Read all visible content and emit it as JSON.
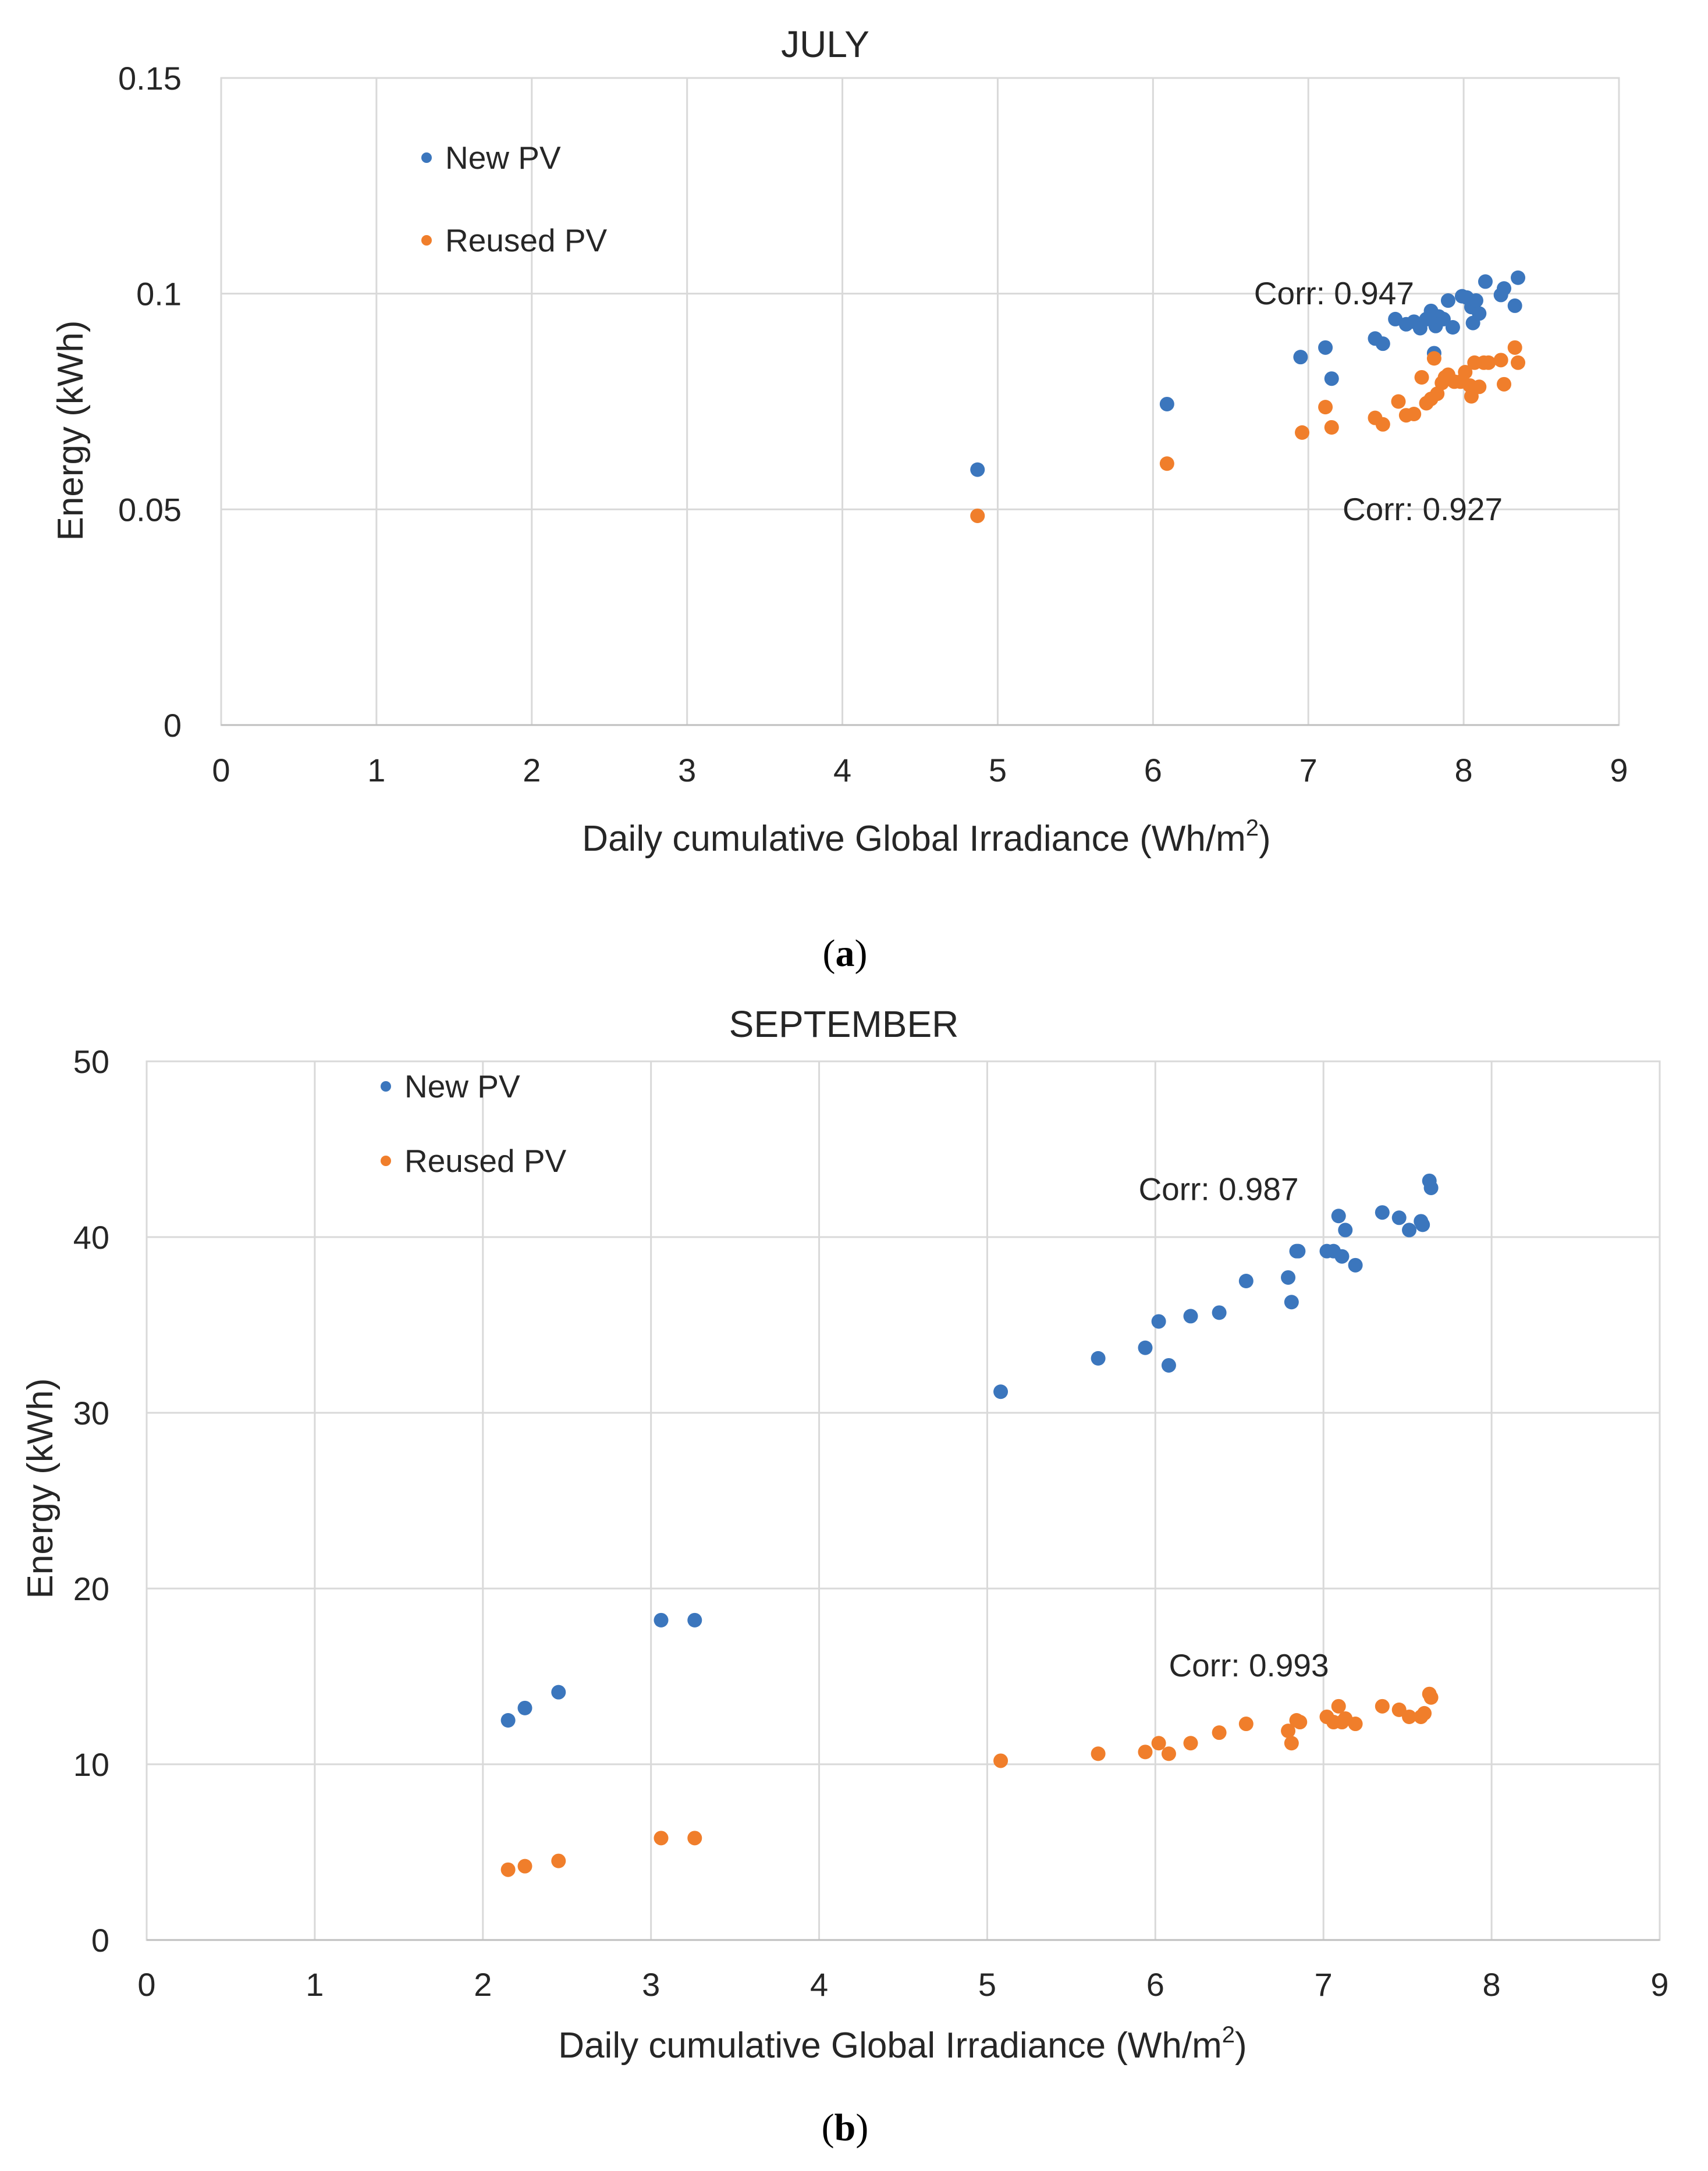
{
  "colors": {
    "new_pv": "#3b76bd",
    "reused_pv": "#f07e2b",
    "grid": "#d9d9d9",
    "text": "#262626"
  },
  "chart_data": [
    {
      "id": "a",
      "type": "scatter",
      "title": "JULY",
      "xlabel": "Daily cumulative Global Irradiance (Wh/m",
      "xlabel_sup": "2",
      "xlabel_end": ")",
      "ylabel": "Energy (kWh)",
      "xlim": [
        0,
        9
      ],
      "ylim": [
        0,
        0.15
      ],
      "xticks": [
        0,
        1,
        2,
        3,
        4,
        5,
        6,
        7,
        8,
        9
      ],
      "yticks": [
        0,
        0.05,
        0.1,
        0.15
      ],
      "ytick_labels": [
        "0",
        "0.05",
        "0.1",
        "0.15"
      ],
      "legend": [
        "New PV",
        "Reused PV"
      ],
      "legend_position": "top-left",
      "caption_letter": "a",
      "annotations": [
        {
          "text": "Corr: 0.947",
          "x": 6.65,
          "y": 0.0975
        },
        {
          "text": "Corr: 0.927",
          "x": 7.22,
          "y": 0.0475
        }
      ],
      "series": [
        {
          "name": "New PV",
          "color": "#3b76bd",
          "points": [
            [
              4.87,
              0.0592
            ],
            [
              6.09,
              0.0744
            ],
            [
              6.95,
              0.0853
            ],
            [
              7.11,
              0.0875
            ],
            [
              7.15,
              0.0803
            ],
            [
              7.43,
              0.0896
            ],
            [
              7.48,
              0.0884
            ],
            [
              7.56,
              0.0941
            ],
            [
              7.63,
              0.0929
            ],
            [
              7.68,
              0.0935
            ],
            [
              7.72,
              0.092
            ],
            [
              7.76,
              0.0941
            ],
            [
              7.79,
              0.096
            ],
            [
              7.82,
              0.0925
            ],
            [
              7.84,
              0.0947
            ],
            [
              7.87,
              0.0941
            ],
            [
              7.9,
              0.0984
            ],
            [
              7.93,
              0.0922
            ],
            [
              7.99,
              0.0994
            ],
            [
              8.02,
              0.0991
            ],
            [
              8.05,
              0.0969
            ],
            [
              8.06,
              0.0932
            ],
            [
              8.08,
              0.0984
            ],
            [
              8.1,
              0.0954
            ],
            [
              8.14,
              0.1028
            ],
            [
              8.24,
              0.0997
            ],
            [
              8.26,
              0.1012
            ],
            [
              8.33,
              0.0972
            ],
            [
              8.35,
              0.1037
            ],
            [
              7.81,
              0.0862
            ]
          ]
        },
        {
          "name": "Reused PV",
          "color": "#f07e2b",
          "points": [
            [
              4.87,
              0.0485
            ],
            [
              6.09,
              0.0606
            ],
            [
              6.96,
              0.0678
            ],
            [
              7.11,
              0.0737
            ],
            [
              7.15,
              0.069
            ],
            [
              7.43,
              0.0712
            ],
            [
              7.48,
              0.0697
            ],
            [
              7.58,
              0.075
            ],
            [
              7.63,
              0.0718
            ],
            [
              7.68,
              0.0721
            ],
            [
              7.73,
              0.0806
            ],
            [
              7.76,
              0.0746
            ],
            [
              7.79,
              0.0756
            ],
            [
              7.81,
              0.085
            ],
            [
              7.83,
              0.0768
            ],
            [
              7.86,
              0.0793
            ],
            [
              7.88,
              0.0806
            ],
            [
              7.9,
              0.0812
            ],
            [
              7.94,
              0.0796
            ],
            [
              7.98,
              0.0796
            ],
            [
              8.01,
              0.0818
            ],
            [
              8.04,
              0.0787
            ],
            [
              8.05,
              0.0762
            ],
            [
              8.07,
              0.084
            ],
            [
              8.1,
              0.0784
            ],
            [
              8.13,
              0.084
            ],
            [
              8.16,
              0.084
            ],
            [
              8.24,
              0.0846
            ],
            [
              8.26,
              0.079
            ],
            [
              8.33,
              0.0875
            ],
            [
              8.35,
              0.084
            ]
          ]
        }
      ]
    },
    {
      "id": "b",
      "type": "scatter",
      "title": "SEPTEMBER",
      "xlabel": "Daily cumulative Global Irradiance (Wh/m",
      "xlabel_sup": "2",
      "xlabel_end": ")",
      "ylabel": "Energy (kWh)",
      "xlim": [
        0,
        9
      ],
      "ylim": [
        0,
        50
      ],
      "xticks": [
        0,
        1,
        2,
        3,
        4,
        5,
        6,
        7,
        8,
        9
      ],
      "yticks": [
        0,
        10,
        20,
        30,
        40,
        50
      ],
      "ytick_labels": [
        "0",
        "10",
        "20",
        "30",
        "40",
        "50"
      ],
      "legend": [
        "New PV",
        "Reused PV"
      ],
      "legend_position": "top-left",
      "caption_letter": "b",
      "annotations": [
        {
          "text": "Corr: 0.987",
          "x": 5.9,
          "y": 42.1
        },
        {
          "text": "Corr: 0.993",
          "x": 6.08,
          "y": 15.0
        }
      ],
      "series": [
        {
          "name": "New PV",
          "color": "#3b76bd",
          "points": [
            [
              2.15,
              12.5
            ],
            [
              2.25,
              13.2
            ],
            [
              2.45,
              14.1
            ],
            [
              3.06,
              18.2
            ],
            [
              3.26,
              18.2
            ],
            [
              5.08,
              31.2
            ],
            [
              5.66,
              33.1
            ],
            [
              5.94,
              33.7
            ],
            [
              6.02,
              35.2
            ],
            [
              6.08,
              32.7
            ],
            [
              6.21,
              35.5
            ],
            [
              6.38,
              35.7
            ],
            [
              6.54,
              37.5
            ],
            [
              6.79,
              37.7
            ],
            [
              6.81,
              36.3
            ],
            [
              6.84,
              39.2
            ],
            [
              6.85,
              39.2
            ],
            [
              7.02,
              39.2
            ],
            [
              7.06,
              39.2
            ],
            [
              7.09,
              41.2
            ],
            [
              7.11,
              38.9
            ],
            [
              7.13,
              40.4
            ],
            [
              7.19,
              38.4
            ],
            [
              7.35,
              41.4
            ],
            [
              7.45,
              41.1
            ],
            [
              7.51,
              40.4
            ],
            [
              7.58,
              40.9
            ],
            [
              7.59,
              40.7
            ],
            [
              7.63,
              43.2
            ],
            [
              7.64,
              42.8
            ]
          ]
        },
        {
          "name": "Reused PV",
          "color": "#f07e2b",
          "points": [
            [
              2.15,
              4.0
            ],
            [
              2.25,
              4.2
            ],
            [
              2.45,
              4.5
            ],
            [
              3.06,
              5.8
            ],
            [
              3.26,
              5.8
            ],
            [
              5.08,
              10.2
            ],
            [
              5.66,
              10.6
            ],
            [
              5.94,
              10.7
            ],
            [
              6.02,
              11.2
            ],
            [
              6.08,
              10.6
            ],
            [
              6.21,
              11.2
            ],
            [
              6.38,
              11.8
            ],
            [
              6.54,
              12.3
            ],
            [
              6.79,
              11.9
            ],
            [
              6.81,
              11.2
            ],
            [
              6.84,
              12.5
            ],
            [
              6.86,
              12.4
            ],
            [
              7.02,
              12.7
            ],
            [
              7.06,
              12.4
            ],
            [
              7.09,
              13.3
            ],
            [
              7.11,
              12.4
            ],
            [
              7.13,
              12.6
            ],
            [
              7.19,
              12.3
            ],
            [
              7.35,
              13.3
            ],
            [
              7.45,
              13.1
            ],
            [
              7.51,
              12.7
            ],
            [
              7.58,
              12.7
            ],
            [
              7.6,
              12.9
            ],
            [
              7.63,
              14.0
            ],
            [
              7.64,
              13.8
            ]
          ]
        }
      ]
    }
  ]
}
